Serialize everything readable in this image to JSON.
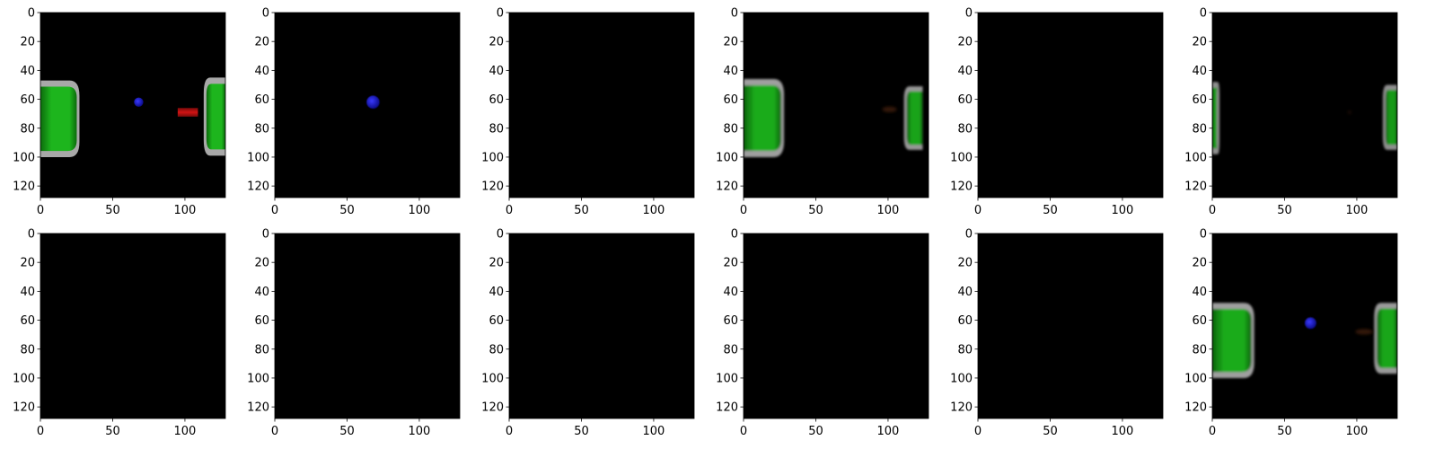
{
  "chart_data": {
    "type": "image-grid",
    "rows": 2,
    "cols": 6,
    "image_size": [
      128,
      128
    ],
    "colors": {
      "background": "#000000",
      "green_object": "#1db51d",
      "green_dark": "#0c6a0c",
      "gray_rim": "#a8a8a8",
      "blue_ball": "#1a1ad6",
      "red_bar": "#d01414",
      "brown_blur": "#4a2408"
    },
    "panels": [
      {
        "xticks": [
          0,
          50,
          100
        ],
        "yticks": [
          0,
          20,
          40,
          60,
          80,
          100,
          120
        ],
        "xlim": [
          0,
          128
        ],
        "ylim": [
          128,
          0
        ],
        "objects": [
          {
            "kind": "cup",
            "side": "left",
            "x0": 0,
            "x1": 27,
            "y0": 47,
            "y1": 100,
            "alpha": 1,
            "blur": 0
          },
          {
            "kind": "cup",
            "side": "right",
            "x0": 113,
            "x1": 128,
            "y0": 45,
            "y1": 99,
            "alpha": 1,
            "blur": 0
          },
          {
            "kind": "ball",
            "cx": 68,
            "cy": 62,
            "r": 3.2,
            "alpha": 1,
            "blur": 0
          },
          {
            "kind": "bar",
            "x0": 95,
            "x1": 109,
            "y0": 66,
            "y1": 72,
            "alpha": 1,
            "blur": 0
          }
        ]
      },
      {
        "xticks": [
          0,
          50,
          100
        ],
        "yticks": [
          0,
          20,
          40,
          60,
          80,
          100,
          120
        ],
        "xlim": [
          0,
          128
        ],
        "ylim": [
          128,
          0
        ],
        "objects": [
          {
            "kind": "ball",
            "cx": 68,
            "cy": 62,
            "r": 4.5,
            "alpha": 1,
            "blur": 0.6
          }
        ]
      },
      {
        "xticks": [
          0,
          50,
          100
        ],
        "yticks": [
          0,
          20,
          40,
          60,
          80,
          100,
          120
        ],
        "xlim": [
          0,
          128
        ],
        "ylim": [
          128,
          0
        ],
        "objects": []
      },
      {
        "xticks": [
          0,
          50,
          100
        ],
        "yticks": [
          0,
          20,
          40,
          60,
          80,
          100,
          120
        ],
        "xlim": [
          0,
          128
        ],
        "ylim": [
          128,
          0
        ],
        "objects": [
          {
            "kind": "cup",
            "side": "left",
            "x0": 0,
            "x1": 28,
            "y0": 46,
            "y1": 100,
            "alpha": 0.95,
            "blur": 1.2
          },
          {
            "kind": "cup",
            "side": "right",
            "x0": 111,
            "x1": 124,
            "y0": 51,
            "y1": 95,
            "alpha": 0.9,
            "blur": 1.4
          },
          {
            "kind": "blur",
            "cx": 101,
            "cy": 67,
            "rx": 5,
            "ry": 2,
            "alpha": 0.7
          }
        ]
      },
      {
        "xticks": [
          0,
          50,
          100
        ],
        "yticks": [
          0,
          20,
          40,
          60,
          80,
          100,
          120
        ],
        "xlim": [
          0,
          128
        ],
        "ylim": [
          128,
          0
        ],
        "objects": []
      },
      {
        "xticks": [
          0,
          50,
          100
        ],
        "yticks": [
          0,
          20,
          40,
          60,
          80,
          100,
          120
        ],
        "xlim": [
          0,
          128
        ],
        "ylim": [
          128,
          0
        ],
        "objects": [
          {
            "kind": "cup",
            "side": "left",
            "x0": 0,
            "x1": 5,
            "y0": 48,
            "y1": 98,
            "alpha": 0.85,
            "blur": 1.2
          },
          {
            "kind": "cup",
            "side": "right",
            "x0": 118,
            "x1": 128,
            "y0": 50,
            "y1": 95,
            "alpha": 0.85,
            "blur": 1.2
          },
          {
            "kind": "blur",
            "cx": 95,
            "cy": 69,
            "rx": 1.5,
            "ry": 1.5,
            "alpha": 0.3
          }
        ]
      },
      {
        "xticks": [
          0,
          50,
          100
        ],
        "yticks": [
          0,
          20,
          40,
          60,
          80,
          100,
          120
        ],
        "xlim": [
          0,
          128
        ],
        "ylim": [
          128,
          0
        ],
        "objects": []
      },
      {
        "xticks": [
          0,
          50,
          100
        ],
        "yticks": [
          0,
          20,
          40,
          60,
          80,
          100,
          120
        ],
        "xlim": [
          0,
          128
        ],
        "ylim": [
          128,
          0
        ],
        "objects": []
      },
      {
        "xticks": [
          0,
          50,
          100
        ],
        "yticks": [
          0,
          20,
          40,
          60,
          80,
          100,
          120
        ],
        "xlim": [
          0,
          128
        ],
        "ylim": [
          128,
          0
        ],
        "objects": []
      },
      {
        "xticks": [
          0,
          50,
          100
        ],
        "yticks": [
          0,
          20,
          40,
          60,
          80,
          100,
          120
        ],
        "xlim": [
          0,
          128
        ],
        "ylim": [
          128,
          0
        ],
        "objects": []
      },
      {
        "xticks": [
          0,
          50,
          100
        ],
        "yticks": [
          0,
          20,
          40,
          60,
          80,
          100,
          120
        ],
        "xlim": [
          0,
          128
        ],
        "ylim": [
          128,
          0
        ],
        "objects": []
      },
      {
        "xticks": [
          0,
          50,
          100
        ],
        "yticks": [
          0,
          20,
          40,
          60,
          80,
          100,
          120
        ],
        "xlim": [
          0,
          128
        ],
        "ylim": [
          128,
          0
        ],
        "objects": [
          {
            "kind": "cup",
            "side": "left",
            "x0": 0,
            "x1": 29,
            "y0": 48,
            "y1": 100,
            "alpha": 0.95,
            "blur": 1.2
          },
          {
            "kind": "cup",
            "side": "right",
            "x0": 112,
            "x1": 128,
            "y0": 48,
            "y1": 97,
            "alpha": 0.92,
            "blur": 1.2
          },
          {
            "kind": "ball",
            "cx": 68,
            "cy": 62,
            "r": 4,
            "alpha": 1,
            "blur": 0.8
          },
          {
            "kind": "blur",
            "cx": 105,
            "cy": 68,
            "rx": 6,
            "ry": 2,
            "alpha": 0.7
          }
        ]
      }
    ]
  }
}
